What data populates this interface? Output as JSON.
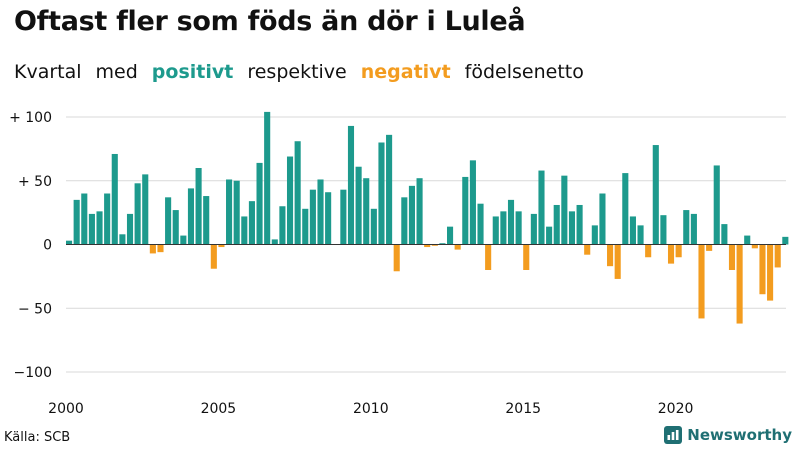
{
  "header": {
    "title": "Oftast fler som föds än dör i Luleå",
    "subtitle_word1": "Kvartal",
    "subtitle_word2": "med",
    "subtitle_positive": "positivt",
    "subtitle_word3": "respektive",
    "subtitle_negative": "negativt",
    "subtitle_word4": "födelsenetto"
  },
  "footer": {
    "source": "Källa: SCB",
    "brand": "Newsworthy"
  },
  "colors": {
    "positive": "#1d9a8d",
    "negative": "#f39c1f",
    "grid": "#d9d9d9",
    "brand": "#1f6f73"
  },
  "icons": {
    "brand_logo": "newsworthy-logo-icon"
  },
  "chart_data": {
    "type": "bar",
    "title": "Oftast fler som föds än dör i Luleå",
    "xlabel": "",
    "ylabel": "",
    "ylim": [
      -105,
      105
    ],
    "y_ticks": [
      100,
      50,
      0,
      -50,
      -100
    ],
    "y_tick_labels": [
      "+ 100",
      "+  50",
      "0",
      "− 50",
      "−100"
    ],
    "x_ticks": [
      2000,
      2005,
      2010,
      2015,
      2020
    ],
    "x_tick_labels": [
      "2000",
      "2005",
      "2010",
      "2015",
      "2020"
    ],
    "start_year": 2000,
    "periods_per_year": 4,
    "values": [
      3,
      35,
      40,
      24,
      26,
      40,
      71,
      8,
      24,
      48,
      55,
      -7,
      -6,
      37,
      27,
      7,
      44,
      60,
      38,
      -19,
      -2,
      51,
      50,
      22,
      34,
      64,
      104,
      4,
      30,
      69,
      81,
      28,
      43,
      51,
      41,
      0,
      43,
      93,
      61,
      52,
      28,
      80,
      86,
      -21,
      37,
      46,
      52,
      -2,
      -1,
      1,
      14,
      -4,
      53,
      66,
      32,
      -20,
      22,
      26,
      35,
      26,
      -20,
      24,
      58,
      14,
      31,
      54,
      26,
      31,
      -8,
      15,
      40,
      -17,
      -27,
      56,
      22,
      15,
      -10,
      78,
      23,
      -15,
      -10,
      27,
      24,
      -58,
      -5,
      62,
      16,
      -20,
      -62,
      7,
      -3,
      -39,
      -44,
      -18,
      6
    ]
  }
}
